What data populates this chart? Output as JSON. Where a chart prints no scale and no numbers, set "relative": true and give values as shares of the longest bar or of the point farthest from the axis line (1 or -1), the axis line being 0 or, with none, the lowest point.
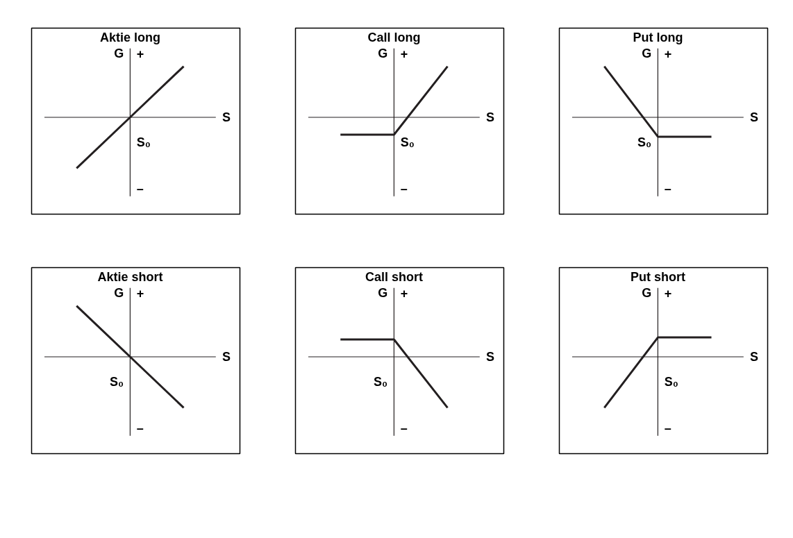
{
  "chart_data": [
    {
      "type": "line",
      "title": "Aktie long",
      "relative": true,
      "xlabel": "S",
      "ylabel": "G",
      "categories": [
        null,
        null,
        null
      ],
      "series": [
        {
          "color": "#231f20",
          "values": [
            -1,
            0,
            1
          ]
        }
      ],
      "annotations": [
        "+",
        "–",
        "S₀"
      ],
      "marker": "none",
      "line_style": "solid"
    },
    {
      "type": "line",
      "title": "Call long",
      "relative": true,
      "xlabel": "S",
      "ylabel": "G",
      "categories": [
        null,
        null,
        null
      ],
      "series": [
        {
          "color": "#231f20",
          "values": [
            -0.34,
            -0.34,
            1
          ]
        }
      ],
      "annotations": [
        "+",
        "–",
        "S₀"
      ],
      "marker": "none",
      "line_style": "solid"
    },
    {
      "type": "line",
      "title": "Put long",
      "relative": true,
      "xlabel": "S",
      "ylabel": "G",
      "categories": [
        null,
        null,
        null
      ],
      "series": [
        {
          "color": "#231f20",
          "values": [
            1,
            -0.38,
            -0.38
          ]
        }
      ],
      "annotations": [
        "+",
        "–",
        "S₀"
      ],
      "marker": "none",
      "line_style": "solid"
    },
    {
      "type": "line",
      "title": "Aktie short",
      "relative": true,
      "xlabel": "S",
      "ylabel": "G",
      "categories": [
        null,
        null,
        null
      ],
      "series": [
        {
          "color": "#231f20",
          "values": [
            1,
            0,
            -1
          ]
        }
      ],
      "annotations": [
        "+",
        "–",
        "S₀"
      ],
      "marker": "none",
      "line_style": "solid"
    },
    {
      "type": "line",
      "title": "Call short",
      "relative": true,
      "xlabel": "S",
      "ylabel": "G",
      "categories": [
        null,
        null,
        null
      ],
      "series": [
        {
          "color": "#231f20",
          "values": [
            0.34,
            0.34,
            -1
          ]
        }
      ],
      "annotations": [
        "+",
        "–",
        "S₀"
      ],
      "marker": "none",
      "line_style": "solid"
    },
    {
      "type": "line",
      "title": "Put short",
      "relative": true,
      "xlabel": "S",
      "ylabel": "G",
      "categories": [
        null,
        null,
        null
      ],
      "series": [
        {
          "color": "#231f20",
          "values": [
            -1,
            0.38,
            0.38
          ]
        }
      ],
      "annotations": [
        "+",
        "–",
        "S₀"
      ],
      "marker": "none",
      "line_style": "solid"
    }
  ]
}
